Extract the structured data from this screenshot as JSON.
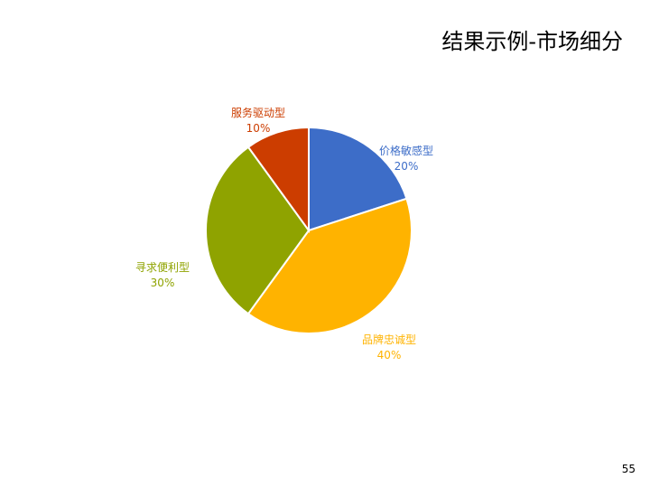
{
  "slide": {
    "title": "结果示例-市场细分",
    "page_number": "55"
  },
  "chart_data": {
    "type": "pie",
    "title": "",
    "slices": [
      {
        "label": "价格敏感型",
        "value": 20,
        "value_label": "20%",
        "color": "#3D6DC8"
      },
      {
        "label": "品牌忠诚型",
        "value": 40,
        "value_label": "40%",
        "color": "#FFB300"
      },
      {
        "label": "寻求便利型",
        "value": 30,
        "value_label": "30%",
        "color": "#8FA300"
      },
      {
        "label": "服务驱动型",
        "value": 10,
        "value_label": "10%",
        "color": "#CC3D00"
      }
    ],
    "start_angle_deg": 0,
    "direction": "clockwise",
    "legend": "none"
  }
}
